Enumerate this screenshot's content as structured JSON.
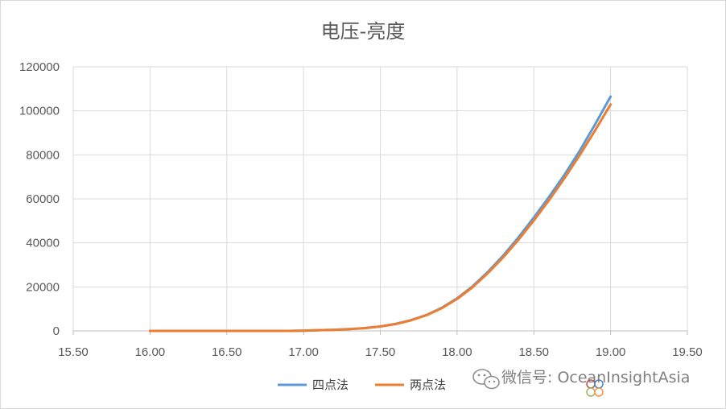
{
  "chart_data": {
    "type": "line",
    "title": "电压-亮度",
    "xlabel": "",
    "ylabel": "",
    "xlim": [
      15.5,
      19.5
    ],
    "ylim": [
      0,
      120000
    ],
    "x_ticks": [
      "15.50",
      "16.00",
      "16.50",
      "17.00",
      "17.50",
      "18.00",
      "18.50",
      "19.00",
      "19.50"
    ],
    "y_ticks": [
      "0",
      "20000",
      "40000",
      "60000",
      "80000",
      "100000",
      "120000"
    ],
    "grid": true,
    "legend_position": "bottom",
    "x": [
      16.0,
      16.1,
      16.2,
      16.3,
      16.4,
      16.5,
      16.6,
      16.7,
      16.8,
      16.9,
      17.0,
      17.1,
      17.2,
      17.3,
      17.4,
      17.5,
      17.6,
      17.7,
      17.8,
      17.9,
      18.0,
      18.1,
      18.2,
      18.3,
      18.4,
      18.5,
      18.6,
      18.7,
      18.8,
      18.9,
      19.0
    ],
    "series": [
      {
        "name": "四点法",
        "color": "#5b9bd5",
        "values": [
          0,
          0,
          0,
          0,
          0,
          0,
          0,
          0,
          0,
          0,
          100,
          300,
          500,
          800,
          1300,
          2000,
          3200,
          4900,
          7200,
          10500,
          14800,
          20200,
          26800,
          34200,
          42500,
          51500,
          61000,
          71000,
          82000,
          94000,
          106500
        ]
      },
      {
        "name": "两点法",
        "color": "#ed7d31",
        "values": [
          0,
          0,
          0,
          0,
          0,
          0,
          0,
          0,
          0,
          0,
          100,
          300,
          500,
          800,
          1300,
          2000,
          3100,
          4800,
          7100,
          10300,
          14500,
          19800,
          26200,
          33400,
          41400,
          50200,
          59500,
          69400,
          80000,
          91200,
          102900
        ]
      }
    ]
  },
  "watermark": {
    "text": "微信号: OceanInsightAsia",
    "icon": "wechat-icon"
  }
}
